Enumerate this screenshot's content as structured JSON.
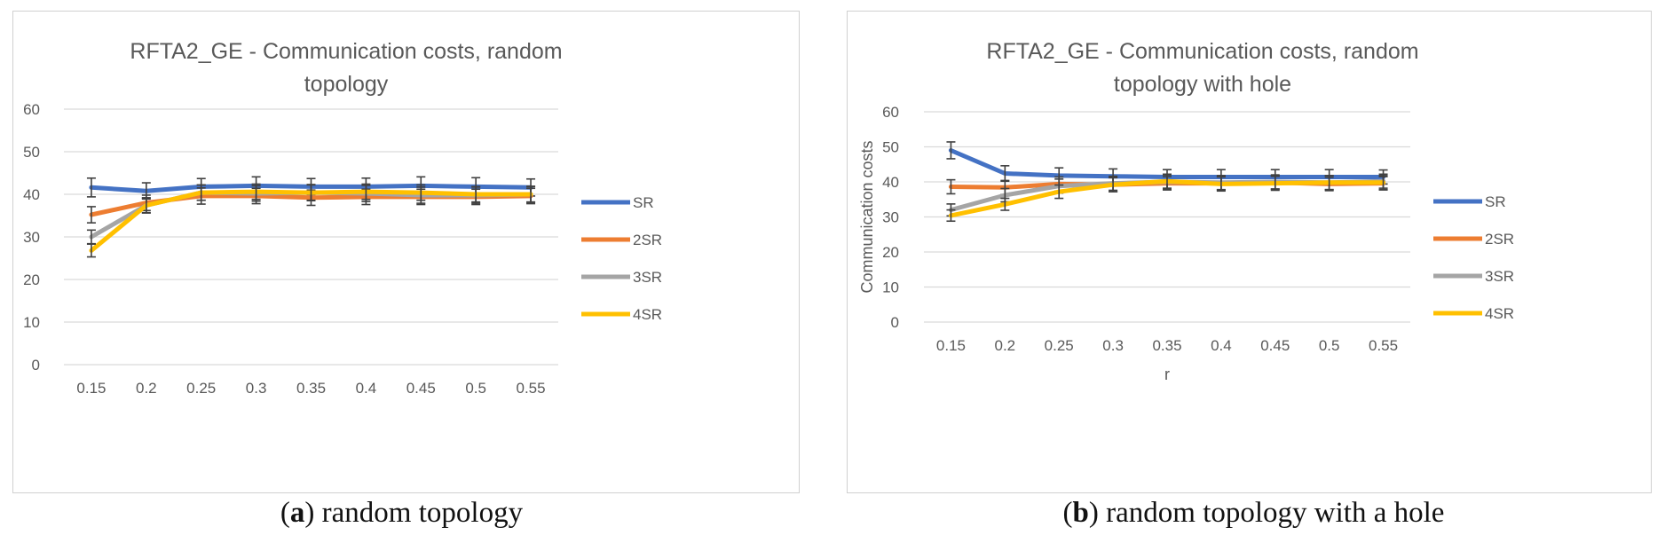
{
  "chart_data": [
    {
      "type": "line",
      "title_lines": [
        "RFTA2_GE - Communication costs, random",
        "topology"
      ],
      "xlabel": "",
      "ylabel": "",
      "categories": [
        "0.15",
        "0.2",
        "0.25",
        "0.3",
        "0.35",
        "0.4",
        "0.45",
        "0.5",
        "0.55"
      ],
      "yticks": [
        "0",
        "10",
        "20",
        "30",
        "40",
        "50",
        "60"
      ],
      "ylim": [
        0,
        60
      ],
      "grid": true,
      "legend": "right",
      "series": [
        {
          "name": "SR",
          "color": "#4472c4",
          "values": [
            41.6,
            40.8,
            41.8,
            42.0,
            41.8,
            41.8,
            42.0,
            41.8,
            41.6
          ],
          "err": [
            2.2,
            1.9,
            1.9,
            2.1,
            1.9,
            2.0,
            2.1,
            2.1,
            2.0
          ]
        },
        {
          "name": "2SR",
          "color": "#ed7d31",
          "values": [
            35.2,
            38.0,
            39.6,
            39.6,
            39.2,
            39.4,
            39.4,
            39.4,
            39.6
          ],
          "err": [
            1.9,
            1.8,
            1.9,
            1.8,
            1.8,
            1.8,
            1.8,
            1.8,
            1.8
          ]
        },
        {
          "name": "3SR",
          "color": "#a5a5a5",
          "values": [
            30.0,
            37.4,
            40.4,
            40.2,
            40.4,
            40.2,
            39.8,
            39.8,
            40.0
          ],
          "err": [
            1.6,
            1.8,
            1.8,
            1.8,
            1.9,
            1.9,
            1.9,
            1.9,
            1.9
          ]
        },
        {
          "name": "4SR",
          "color": "#ffc000",
          "values": [
            26.8,
            37.4,
            40.4,
            40.6,
            40.4,
            40.6,
            40.4,
            40.0,
            40.0
          ],
          "err": [
            1.5,
            1.7,
            1.8,
            1.8,
            1.8,
            1.8,
            1.8,
            1.8,
            1.8
          ]
        }
      ]
    },
    {
      "type": "line",
      "title_lines": [
        "RFTA2_GE - Communication costs, random",
        "topology with hole"
      ],
      "xlabel": "r",
      "ylabel": "Communication costs",
      "categories": [
        "0.15",
        "0.2",
        "0.25",
        "0.3",
        "0.35",
        "0.4",
        "0.45",
        "0.5",
        "0.55"
      ],
      "yticks": [
        "0",
        "10",
        "20",
        "30",
        "40",
        "50",
        "60"
      ],
      "ylim": [
        0,
        60
      ],
      "grid": true,
      "legend": "right",
      "series": [
        {
          "name": "SR",
          "color": "#4472c4",
          "values": [
            49.0,
            42.4,
            41.8,
            41.6,
            41.4,
            41.4,
            41.4,
            41.4,
            41.4
          ],
          "err": [
            2.4,
            2.2,
            2.2,
            2.1,
            2.1,
            2.1,
            2.1,
            2.1,
            2.0
          ]
        },
        {
          "name": "2SR",
          "color": "#ed7d31",
          "values": [
            38.6,
            38.4,
            39.4,
            39.2,
            39.6,
            39.6,
            39.8,
            39.4,
            39.6
          ],
          "err": [
            2.0,
            2.0,
            2.0,
            2.0,
            1.9,
            1.9,
            1.9,
            1.9,
            1.9
          ]
        },
        {
          "name": "3SR",
          "color": "#a5a5a5",
          "values": [
            32.0,
            36.2,
            38.8,
            39.6,
            40.0,
            39.8,
            40.0,
            39.8,
            40.2
          ],
          "err": [
            1.7,
            1.9,
            2.0,
            2.0,
            2.0,
            2.0,
            2.0,
            2.0,
            2.0
          ]
        },
        {
          "name": "4SR",
          "color": "#ffc000",
          "values": [
            30.4,
            33.6,
            37.2,
            39.2,
            40.2,
            39.4,
            39.6,
            39.8,
            39.8
          ],
          "err": [
            1.6,
            1.7,
            1.9,
            2.0,
            2.0,
            2.0,
            2.0,
            2.0,
            2.0
          ]
        }
      ]
    }
  ],
  "captions": [
    {
      "letter": "a",
      "text": " random topology"
    },
    {
      "letter": "b",
      "text": " random topology with a hole"
    }
  ]
}
